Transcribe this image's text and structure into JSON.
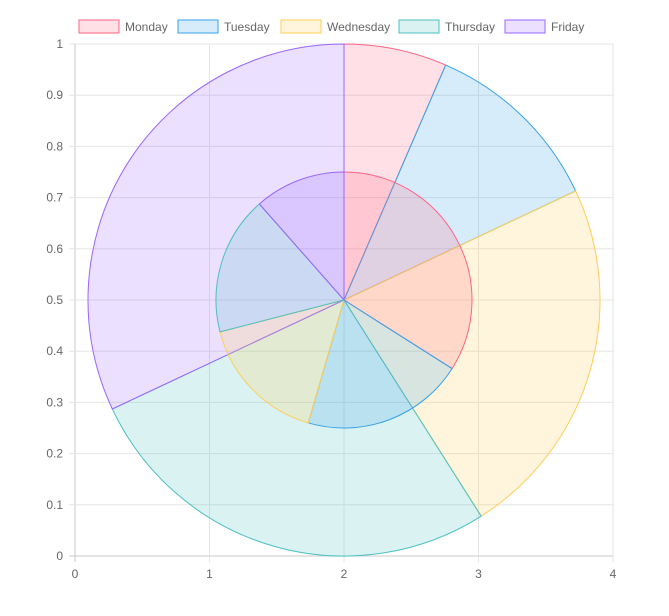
{
  "chart_data": {
    "type": "polar_area",
    "legend": {
      "position": "top",
      "items": [
        {
          "label": "Monday",
          "color": "#ff6384",
          "fill": "rgba(255,99,132,0.2)"
        },
        {
          "label": "Tuesday",
          "color": "#36a2eb",
          "fill": "rgba(54,162,235,0.2)"
        },
        {
          "label": "Wednesday",
          "color": "#ffcd56",
          "fill": "rgba(255,205,86,0.2)"
        },
        {
          "label": "Thursday",
          "color": "#4bc0c0",
          "fill": "rgba(75,192,192,0.2)"
        },
        {
          "label": "Friday",
          "color": "#9966ff",
          "fill": "rgba(153,102,255,0.2)"
        }
      ]
    },
    "x_axis": {
      "min": 0,
      "max": 4,
      "ticks": [
        "0",
        "1",
        "2",
        "3",
        "4"
      ]
    },
    "y_axis": {
      "min": 0,
      "max": 1,
      "ticks": [
        "0",
        "0.1",
        "0.2",
        "0.3",
        "0.4",
        "0.5",
        "0.6",
        "0.7",
        "0.8",
        "0.9",
        "1"
      ]
    },
    "grid": true,
    "rings": [
      {
        "name": "outer",
        "radius_fraction": 1.0,
        "slices": [
          {
            "label": "Monday",
            "value": 6.5
          },
          {
            "label": "Tuesday",
            "value": 11.5
          },
          {
            "label": "Wednesday",
            "value": 23
          },
          {
            "label": "Thursday",
            "value": 27
          },
          {
            "label": "Friday",
            "value": 32
          }
        ]
      },
      {
        "name": "inner",
        "radius_fraction": 0.5,
        "slices": [
          {
            "label": "Monday",
            "value": 34
          },
          {
            "label": "Tuesday",
            "value": 20.5
          },
          {
            "label": "Wednesday",
            "value": 16.5
          },
          {
            "label": "Thursday",
            "value": 17.5
          },
          {
            "label": "Friday",
            "value": 11.5
          }
        ]
      }
    ]
  }
}
